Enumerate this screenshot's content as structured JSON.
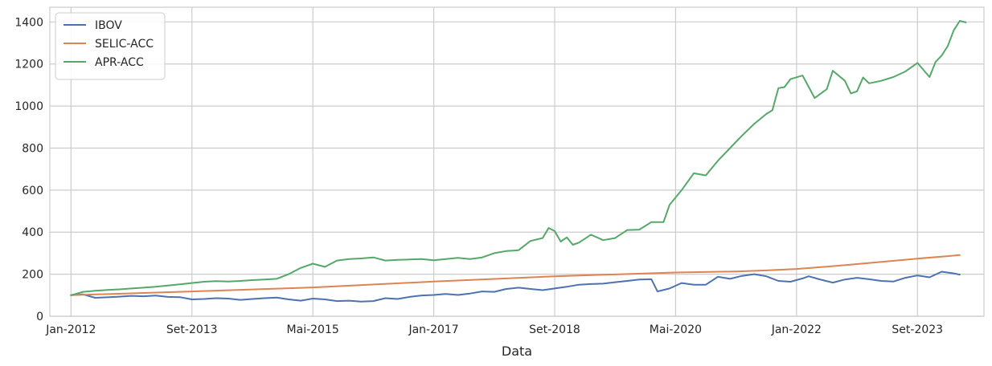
{
  "chart_data": {
    "type": "line",
    "title": "",
    "xlabel": "Data",
    "ylabel": "",
    "ylim": [
      0,
      1470
    ],
    "xlim": [
      -3.5,
      151
    ],
    "grid": true,
    "legend_position": "top-left",
    "y_ticks": [
      0,
      200,
      400,
      600,
      800,
      1000,
      1200,
      1400
    ],
    "x_ticks": [
      {
        "index": 0,
        "label": "Jan-2012"
      },
      {
        "index": 20,
        "label": "Set-2013"
      },
      {
        "index": 40,
        "label": "Mai-2015"
      },
      {
        "index": 60,
        "label": "Jan-2017"
      },
      {
        "index": 80,
        "label": "Set-2018"
      },
      {
        "index": 100,
        "label": "Mai-2020"
      },
      {
        "index": 120,
        "label": "Jan-2022"
      },
      {
        "index": 140,
        "label": "Set-2023"
      }
    ],
    "series": [
      {
        "name": "IBOV",
        "color": "#4c72b0",
        "points": [
          [
            0,
            100
          ],
          [
            2,
            104
          ],
          [
            4,
            88
          ],
          [
            6,
            90
          ],
          [
            8,
            93
          ],
          [
            10,
            97
          ],
          [
            12,
            95
          ],
          [
            14,
            98
          ],
          [
            16,
            92
          ],
          [
            18,
            91
          ],
          [
            20,
            80
          ],
          [
            22,
            82
          ],
          [
            24,
            86
          ],
          [
            26,
            84
          ],
          [
            28,
            78
          ],
          [
            30,
            82
          ],
          [
            32,
            86
          ],
          [
            34,
            89
          ],
          [
            36,
            80
          ],
          [
            38,
            74
          ],
          [
            40,
            84
          ],
          [
            42,
            80
          ],
          [
            44,
            72
          ],
          [
            46,
            74
          ],
          [
            48,
            70
          ],
          [
            50,
            72
          ],
          [
            52,
            86
          ],
          [
            54,
            82
          ],
          [
            56,
            92
          ],
          [
            58,
            99
          ],
          [
            60,
            101
          ],
          [
            62,
            106
          ],
          [
            64,
            101
          ],
          [
            66,
            108
          ],
          [
            68,
            118
          ],
          [
            70,
            116
          ],
          [
            72,
            130
          ],
          [
            74,
            136
          ],
          [
            76,
            130
          ],
          [
            78,
            124
          ],
          [
            80,
            132
          ],
          [
            82,
            140
          ],
          [
            84,
            150
          ],
          [
            86,
            153
          ],
          [
            88,
            155
          ],
          [
            90,
            162
          ],
          [
            92,
            168
          ],
          [
            94,
            175
          ],
          [
            96,
            176
          ],
          [
            97,
            118
          ],
          [
            99,
            132
          ],
          [
            101,
            158
          ],
          [
            103,
            150
          ],
          [
            105,
            150
          ],
          [
            107,
            188
          ],
          [
            109,
            178
          ],
          [
            111,
            192
          ],
          [
            113,
            200
          ],
          [
            115,
            190
          ],
          [
            117,
            168
          ],
          [
            119,
            164
          ],
          [
            121,
            180
          ],
          [
            122,
            190
          ],
          [
            124,
            174
          ],
          [
            126,
            160
          ],
          [
            128,
            175
          ],
          [
            130,
            183
          ],
          [
            132,
            176
          ],
          [
            134,
            168
          ],
          [
            136,
            165
          ],
          [
            138,
            183
          ],
          [
            140,
            194
          ],
          [
            142,
            185
          ],
          [
            144,
            212
          ],
          [
            146,
            204
          ],
          [
            147,
            198
          ]
        ]
      },
      {
        "name": "SELIC-ACC",
        "color": "#dd8452",
        "points": [
          [
            0,
            100
          ],
          [
            20,
            118
          ],
          [
            40,
            137
          ],
          [
            60,
            165
          ],
          [
            80,
            190
          ],
          [
            100,
            208
          ],
          [
            110,
            213
          ],
          [
            115,
            218
          ],
          [
            120,
            225
          ],
          [
            125,
            236
          ],
          [
            130,
            248
          ],
          [
            135,
            261
          ],
          [
            140,
            274
          ],
          [
            145,
            286
          ],
          [
            147,
            291
          ]
        ]
      },
      {
        "name": "APR-ACC",
        "color": "#55a868",
        "points": [
          [
            0,
            100
          ],
          [
            2,
            116
          ],
          [
            4,
            121
          ],
          [
            6,
            125
          ],
          [
            8,
            128
          ],
          [
            10,
            132
          ],
          [
            12,
            136
          ],
          [
            14,
            140
          ],
          [
            16,
            146
          ],
          [
            18,
            152
          ],
          [
            20,
            158
          ],
          [
            22,
            164
          ],
          [
            24,
            167
          ],
          [
            26,
            165
          ],
          [
            28,
            168
          ],
          [
            30,
            172
          ],
          [
            32,
            175
          ],
          [
            34,
            178
          ],
          [
            36,
            200
          ],
          [
            38,
            230
          ],
          [
            40,
            250
          ],
          [
            42,
            235
          ],
          [
            44,
            265
          ],
          [
            46,
            272
          ],
          [
            48,
            275
          ],
          [
            50,
            280
          ],
          [
            52,
            265
          ],
          [
            54,
            268
          ],
          [
            56,
            270
          ],
          [
            58,
            272
          ],
          [
            60,
            266
          ],
          [
            62,
            272
          ],
          [
            64,
            278
          ],
          [
            66,
            272
          ],
          [
            68,
            280
          ],
          [
            70,
            300
          ],
          [
            72,
            310
          ],
          [
            74,
            314
          ],
          [
            76,
            358
          ],
          [
            78,
            372
          ],
          [
            79,
            420
          ],
          [
            80,
            405
          ],
          [
            81,
            355
          ],
          [
            82,
            375
          ],
          [
            83,
            340
          ],
          [
            84,
            350
          ],
          [
            86,
            388
          ],
          [
            88,
            362
          ],
          [
            90,
            372
          ],
          [
            92,
            410
          ],
          [
            94,
            412
          ],
          [
            96,
            448
          ],
          [
            98,
            448
          ],
          [
            99,
            530
          ],
          [
            101,
            600
          ],
          [
            103,
            680
          ],
          [
            105,
            670
          ],
          [
            107,
            740
          ],
          [
            109,
            800
          ],
          [
            111,
            860
          ],
          [
            113,
            915
          ],
          [
            115,
            962
          ],
          [
            116,
            980
          ],
          [
            117,
            1085
          ],
          [
            118,
            1090
          ],
          [
            119,
            1128
          ],
          [
            121,
            1145
          ],
          [
            123,
            1038
          ],
          [
            125,
            1080
          ],
          [
            126,
            1168
          ],
          [
            128,
            1120
          ],
          [
            129,
            1060
          ],
          [
            130,
            1070
          ],
          [
            131,
            1136
          ],
          [
            132,
            1108
          ],
          [
            134,
            1120
          ],
          [
            136,
            1138
          ],
          [
            138,
            1164
          ],
          [
            140,
            1205
          ],
          [
            142,
            1138
          ],
          [
            143,
            1210
          ],
          [
            144,
            1240
          ],
          [
            145,
            1285
          ],
          [
            146,
            1360
          ],
          [
            147,
            1405
          ],
          [
            148,
            1398
          ]
        ]
      }
    ]
  }
}
